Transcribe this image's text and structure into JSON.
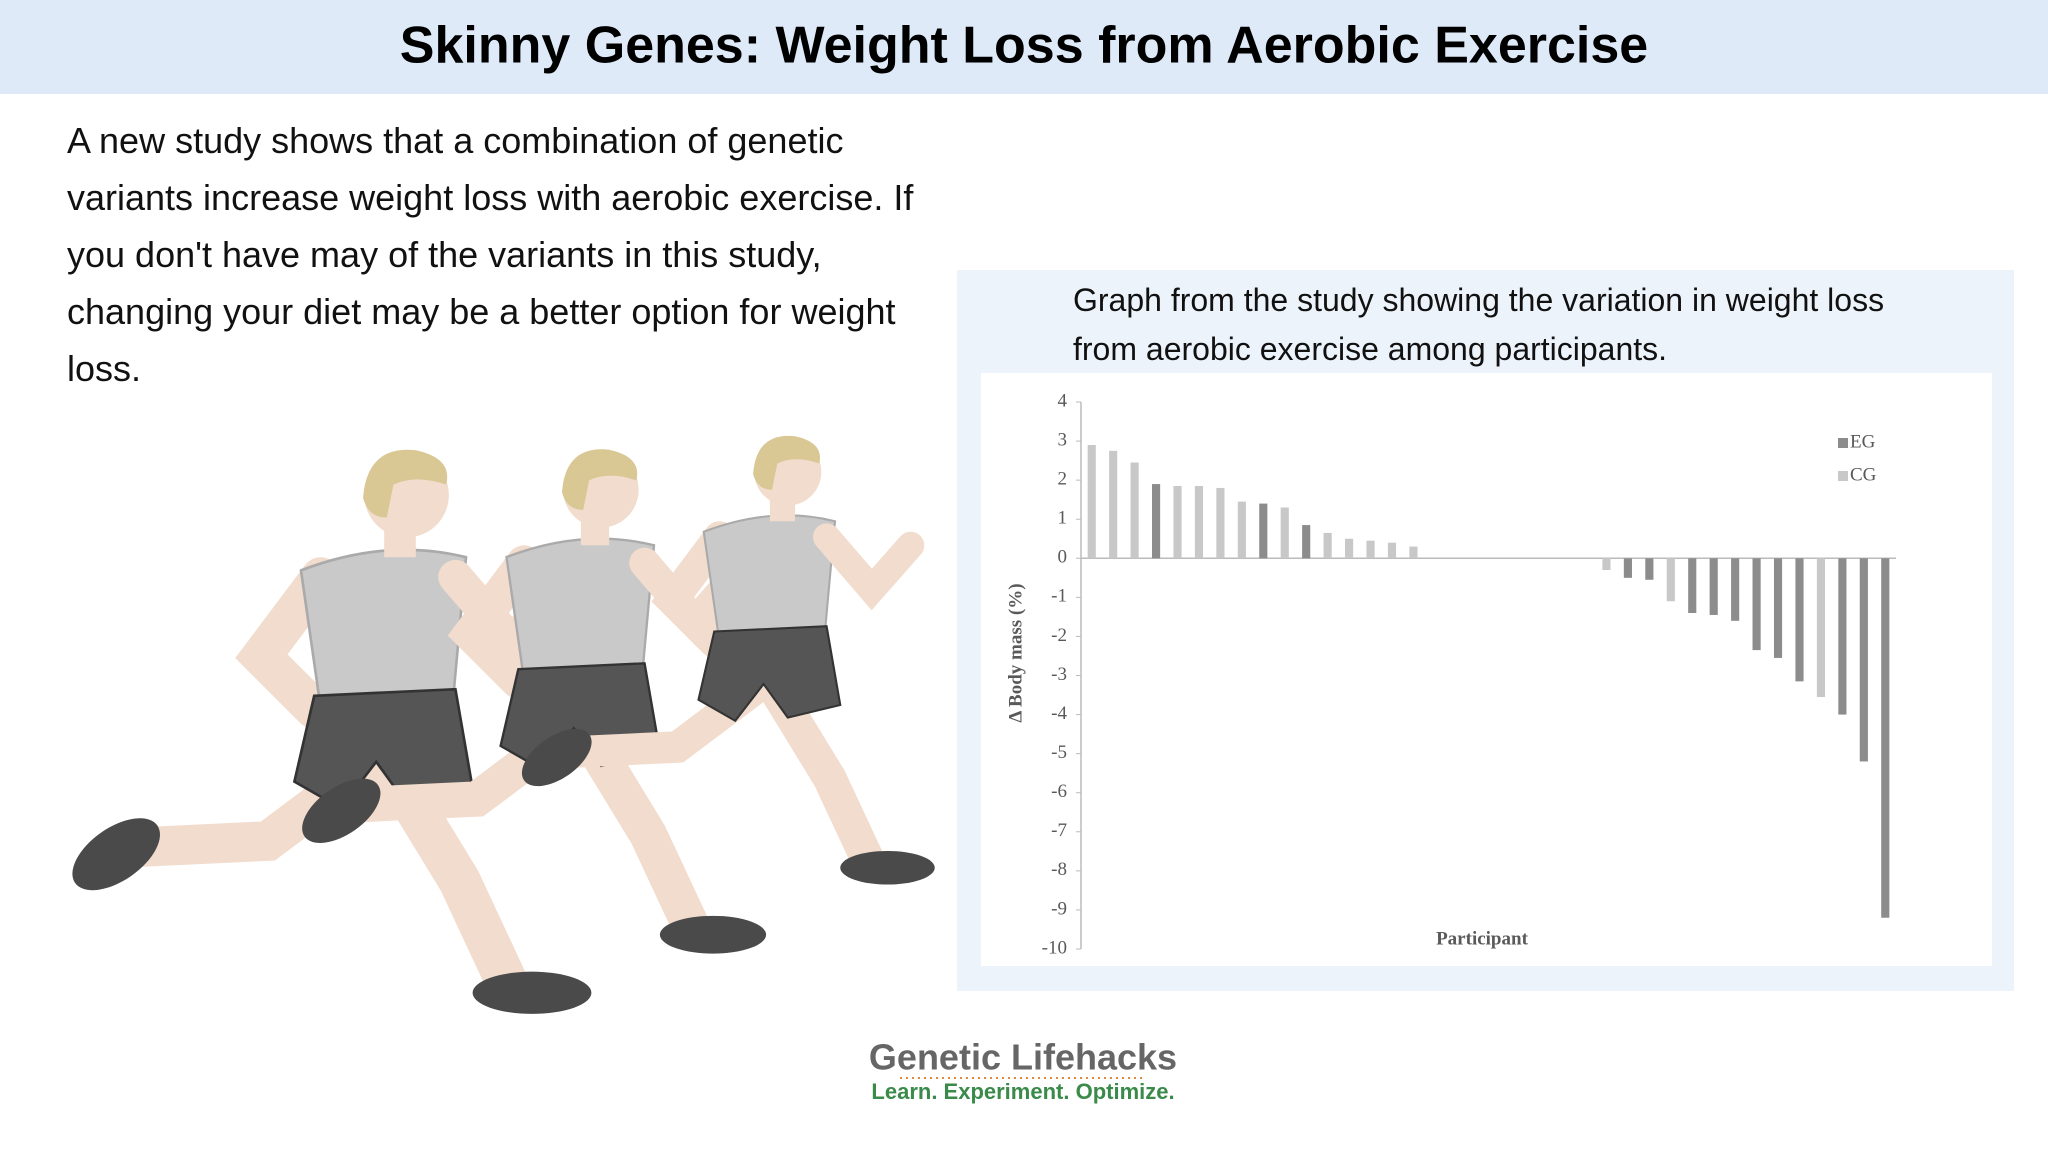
{
  "header": {
    "title": "Skinny Genes: Weight Loss from Aerobic Exercise"
  },
  "intro": "A new study shows that a combination of genetic variants increase weight loss with aerobic exercise. If you don't have may of the variants in this study, changing your diet may be a better option for weight loss.",
  "figure": {
    "caption": "Graph from the study showing the variation in weight loss from aerobic exercise among participants."
  },
  "chart_data": {
    "type": "bar",
    "ylabel": "Δ Body mass (%)",
    "xlabel": "Participant",
    "categories": [
      null,
      null,
      null,
      null,
      null,
      null,
      null,
      null,
      null,
      null,
      null,
      null,
      null,
      null,
      null,
      null,
      null,
      null,
      null,
      null,
      null,
      null,
      null,
      null,
      null,
      null,
      null,
      null,
      null,
      null,
      null,
      null,
      null,
      null,
      null,
      null,
      null,
      null
    ],
    "series": [
      {
        "name": "EG",
        "color": "#8c8c8c",
        "values": [
          null,
          null,
          null,
          1.9,
          null,
          null,
          null,
          null,
          1.4,
          null,
          0.85,
          null,
          null,
          null,
          null,
          null,
          null,
          null,
          null,
          null,
          null,
          null,
          null,
          null,
          null,
          -0.5,
          -0.55,
          null,
          -1.4,
          -1.45,
          -1.6,
          -2.35,
          -2.55,
          -3.15,
          null,
          -4,
          -5.2,
          -9.2
        ]
      },
      {
        "name": "CG",
        "color": "#c8c8c8",
        "values": [
          2.9,
          2.75,
          2.45,
          null,
          1.85,
          1.85,
          1.8,
          1.45,
          null,
          1.3,
          null,
          0.65,
          0.5,
          0.45,
          0.4,
          0.3,
          null,
          null,
          null,
          null,
          null,
          null,
          null,
          null,
          -0.3,
          null,
          null,
          -1.1,
          null,
          null,
          null,
          null,
          null,
          null,
          -3.55,
          null,
          null,
          null
        ]
      }
    ],
    "ylim": [
      -10,
      4
    ],
    "yticks": [
      -10,
      -9,
      -8,
      -7,
      -6,
      -5,
      -4,
      -3,
      -2,
      -1,
      0,
      1,
      2,
      3,
      4
    ],
    "grid": false,
    "legend": "upper right"
  },
  "footer": {
    "brand": "Genetic Lifehacks",
    "tagline": "Learn. Experiment. Optimize."
  }
}
